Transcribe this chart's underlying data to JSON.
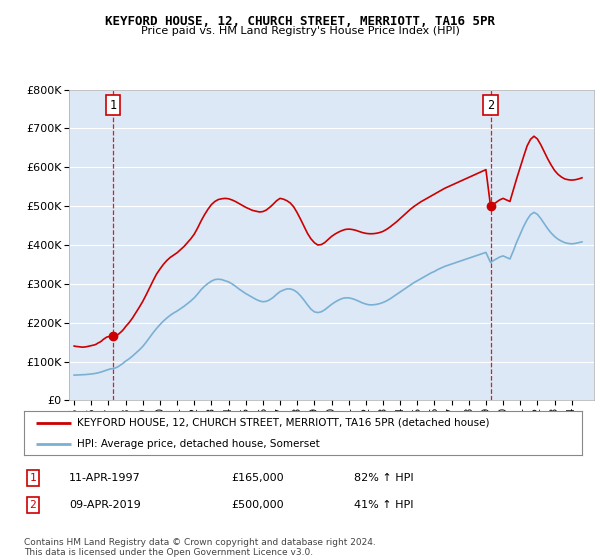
{
  "title": "KEYFORD HOUSE, 12, CHURCH STREET, MERRIOTT, TA16 5PR",
  "subtitle": "Price paid vs. HM Land Registry's House Price Index (HPI)",
  "legend_line1": "KEYFORD HOUSE, 12, CHURCH STREET, MERRIOTT, TA16 5PR (detached house)",
  "legend_line2": "HPI: Average price, detached house, Somerset",
  "annotation1_label": "1",
  "annotation1_date": "11-APR-1997",
  "annotation1_price": "£165,000",
  "annotation1_hpi": "82% ↑ HPI",
  "annotation2_label": "2",
  "annotation2_date": "09-APR-2019",
  "annotation2_price": "£500,000",
  "annotation2_hpi": "41% ↑ HPI",
  "footer": "Contains HM Land Registry data © Crown copyright and database right 2024.\nThis data is licensed under the Open Government Licence v3.0.",
  "sale1_year": 1997.28,
  "sale1_value": 165000,
  "sale2_year": 2019.27,
  "sale2_value": 500000,
  "property_color": "#cc0000",
  "hpi_color": "#7ab0d4",
  "vline_color": "#cc0000",
  "background_color": "#dce8f5",
  "ylim": [
    0,
    800000
  ],
  "xlim": [
    1994.7,
    2025.3
  ],
  "yticks": [
    0,
    100000,
    200000,
    300000,
    400000,
    500000,
    600000,
    700000,
    800000
  ],
  "property_hpi_data": {
    "years": [
      1995.0,
      1995.1,
      1995.2,
      1995.3,
      1995.4,
      1995.5,
      1995.6,
      1995.7,
      1995.8,
      1995.9,
      1996.0,
      1996.1,
      1996.2,
      1996.3,
      1996.4,
      1996.5,
      1996.6,
      1996.7,
      1996.8,
      1996.9,
      1997.0,
      1997.1,
      1997.28,
      1997.4,
      1997.5,
      1997.6,
      1997.7,
      1997.8,
      1997.9,
      1998.0,
      1998.2,
      1998.4,
      1998.6,
      1998.8,
      1999.0,
      1999.2,
      1999.4,
      1999.6,
      1999.8,
      2000.0,
      2000.2,
      2000.4,
      2000.6,
      2000.8,
      2001.0,
      2001.2,
      2001.4,
      2001.6,
      2001.8,
      2002.0,
      2002.2,
      2002.4,
      2002.6,
      2002.8,
      2003.0,
      2003.2,
      2003.4,
      2003.6,
      2003.8,
      2004.0,
      2004.2,
      2004.4,
      2004.6,
      2004.8,
      2005.0,
      2005.2,
      2005.4,
      2005.6,
      2005.8,
      2006.0,
      2006.2,
      2006.4,
      2006.6,
      2006.8,
      2007.0,
      2007.2,
      2007.4,
      2007.6,
      2007.8,
      2008.0,
      2008.2,
      2008.4,
      2008.6,
      2008.8,
      2009.0,
      2009.2,
      2009.4,
      2009.6,
      2009.8,
      2010.0,
      2010.2,
      2010.4,
      2010.6,
      2010.8,
      2011.0,
      2011.2,
      2011.4,
      2011.6,
      2011.8,
      2012.0,
      2012.2,
      2012.4,
      2012.6,
      2012.8,
      2013.0,
      2013.2,
      2013.4,
      2013.6,
      2013.8,
      2014.0,
      2014.2,
      2014.4,
      2014.6,
      2014.8,
      2015.0,
      2015.2,
      2015.4,
      2015.6,
      2015.8,
      2016.0,
      2016.2,
      2016.4,
      2016.6,
      2016.8,
      2017.0,
      2017.2,
      2017.4,
      2017.6,
      2017.8,
      2018.0,
      2018.2,
      2018.4,
      2018.6,
      2018.8,
      2019.0,
      2019.27,
      2019.4,
      2019.6,
      2019.8,
      2020.0,
      2020.2,
      2020.4,
      2020.6,
      2020.8,
      2021.0,
      2021.2,
      2021.4,
      2021.6,
      2021.8,
      2022.0,
      2022.2,
      2022.4,
      2022.6,
      2022.8,
      2023.0,
      2023.2,
      2023.4,
      2023.6,
      2023.8,
      2024.0,
      2024.2,
      2024.4,
      2024.6
    ],
    "property_values": [
      140000,
      139000,
      138500,
      138000,
      137500,
      137000,
      137500,
      138000,
      139000,
      140000,
      141000,
      142000,
      143000,
      145000,
      148000,
      150000,
      153000,
      157000,
      160000,
      163000,
      164000,
      164500,
      165000,
      166000,
      168000,
      171000,
      175000,
      179000,
      184000,
      190000,
      200000,
      212000,
      226000,
      240000,
      255000,
      272000,
      290000,
      308000,
      325000,
      338000,
      350000,
      360000,
      368000,
      374000,
      380000,
      388000,
      396000,
      406000,
      416000,
      428000,
      444000,
      462000,
      478000,
      492000,
      504000,
      512000,
      517000,
      519000,
      520000,
      519000,
      516000,
      512000,
      507000,
      502000,
      497000,
      493000,
      489000,
      487000,
      485000,
      486000,
      490000,
      497000,
      505000,
      514000,
      520000,
      518000,
      514000,
      508000,
      498000,
      483000,
      466000,
      448000,
      430000,
      416000,
      406000,
      400000,
      401000,
      406000,
      414000,
      422000,
      428000,
      433000,
      437000,
      440000,
      441000,
      440000,
      438000,
      435000,
      432000,
      430000,
      429000,
      429000,
      430000,
      432000,
      435000,
      440000,
      446000,
      453000,
      460000,
      468000,
      476000,
      484000,
      492000,
      499000,
      505000,
      511000,
      516000,
      521000,
      526000,
      531000,
      536000,
      541000,
      546000,
      550000,
      554000,
      558000,
      562000,
      566000,
      570000,
      574000,
      578000,
      582000,
      586000,
      590000,
      594000,
      500000,
      504000,
      510000,
      516000,
      520000,
      516000,
      512000,
      542000,
      572000,
      600000,
      628000,
      655000,
      672000,
      680000,
      673000,
      658000,
      640000,
      622000,
      606000,
      592000,
      582000,
      575000,
      570000,
      568000,
      567000,
      568000,
      570000,
      573000
    ],
    "hpi_values": [
      65000,
      65200,
      65400,
      65600,
      65800,
      66000,
      66300,
      66600,
      67000,
      67400,
      68000,
      68500,
      69200,
      70000,
      71000,
      72200,
      73500,
      75000,
      76500,
      78000,
      79500,
      81000,
      82000,
      83500,
      85500,
      88000,
      91000,
      94000,
      97500,
      101000,
      107000,
      114000,
      122000,
      130000,
      139000,
      150000,
      162000,
      174000,
      185000,
      195000,
      204000,
      212000,
      219000,
      225000,
      230000,
      236000,
      242000,
      249000,
      256000,
      264000,
      274000,
      285000,
      294000,
      301000,
      307000,
      311000,
      312000,
      311000,
      308000,
      305000,
      300000,
      294000,
      287000,
      281000,
      275000,
      270000,
      265000,
      260000,
      256000,
      254000,
      255000,
      259000,
      265000,
      273000,
      280000,
      284000,
      287000,
      287000,
      284000,
      278000,
      269000,
      258000,
      246000,
      235000,
      228000,
      226000,
      228000,
      233000,
      240000,
      247000,
      253000,
      258000,
      262000,
      264000,
      264000,
      262000,
      259000,
      255000,
      251000,
      248000,
      246000,
      246000,
      247000,
      249000,
      252000,
      256000,
      261000,
      267000,
      273000,
      279000,
      285000,
      291000,
      297000,
      303000,
      308000,
      313000,
      318000,
      323000,
      328000,
      332000,
      337000,
      341000,
      345000,
      348000,
      351000,
      354000,
      357000,
      360000,
      363000,
      366000,
      369000,
      372000,
      375000,
      378000,
      381000,
      355000,
      359000,
      364000,
      369000,
      372000,
      368000,
      364000,
      385000,
      408000,
      428000,
      448000,
      465000,
      478000,
      484000,
      479000,
      468000,
      455000,
      442000,
      431000,
      422000,
      415000,
      410000,
      406000,
      404000,
      403000,
      404000,
      406000,
      408000
    ]
  }
}
